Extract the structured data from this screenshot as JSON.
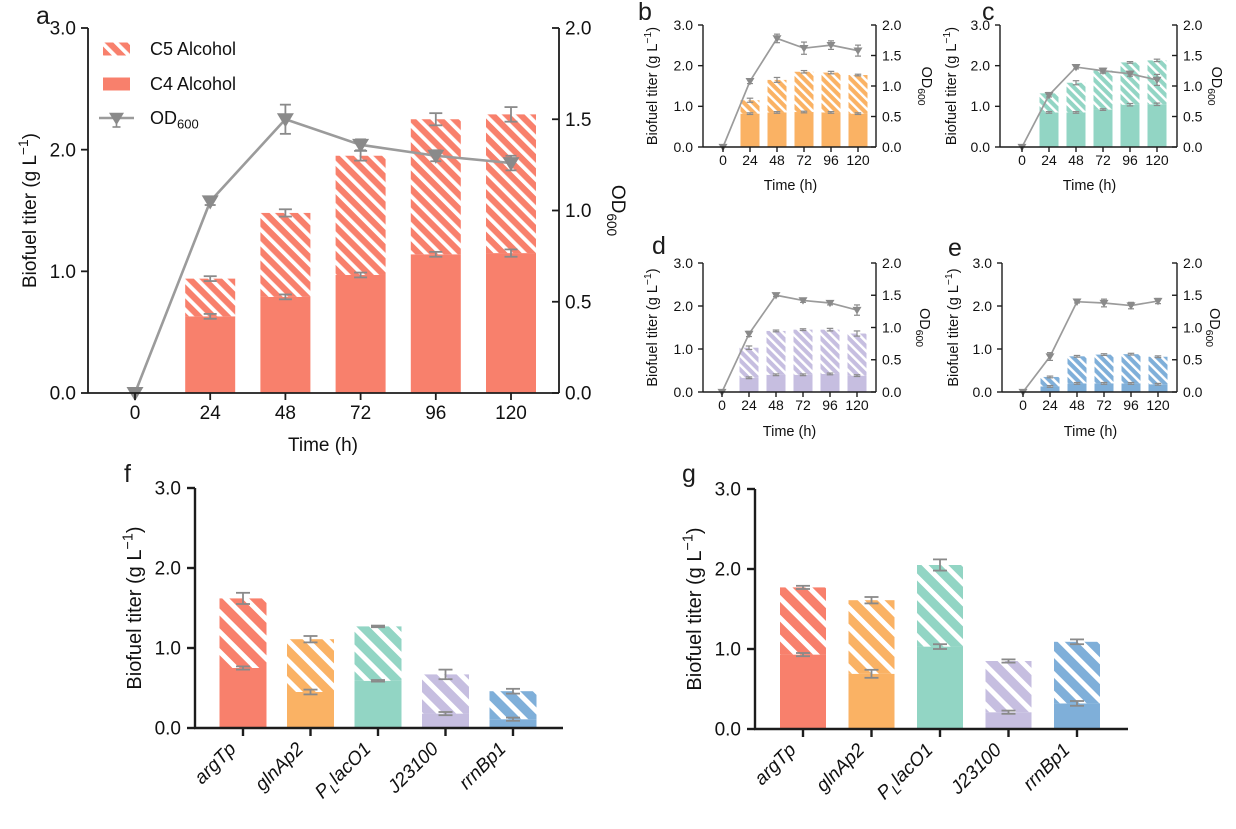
{
  "panel_letters": [
    "a",
    "b",
    "c",
    "d",
    "e",
    "f",
    "g"
  ],
  "colors": {
    "axis": "#1c1c1c",
    "text": "#111111",
    "od_line": "#9b9b9b",
    "od_marker": "#8a8a8a",
    "error_bar": "#8a8a8a",
    "bars": {
      "salmon": "#F8806C",
      "orange": "#FAB264",
      "teal": "#92D5C4",
      "purple": "#C6BEE0",
      "blue": "#7FAFD9"
    }
  },
  "labels": {
    "y_left": "Biofuel titer (g L^{−1})",
    "y_right": "OD_{600}",
    "x_time": "Time (h)"
  },
  "legend": [
    {
      "label": "C5 Alcohol",
      "swatch": "hatch"
    },
    {
      "label": "C4 Alcohol",
      "swatch": "solid"
    },
    {
      "label": "OD_{600}",
      "swatch": "line"
    }
  ],
  "chart_data": [
    {
      "panel": "a",
      "type": "stacked_bar_with_od_line",
      "color": "salmon",
      "has_legend": true,
      "x_ticks": [
        "0",
        "24",
        "48",
        "72",
        "96",
        "120"
      ],
      "y_left_ticks": [
        "0.0",
        "1.0",
        "2.0",
        "3.0"
      ],
      "ylim_left": [
        0,
        3
      ],
      "y_right_ticks": [
        "0.0",
        "0.5",
        "1.0",
        "1.5",
        "2.0"
      ],
      "ylim_right": [
        0,
        2
      ],
      "bar_times_h": [
        24,
        48,
        72,
        96,
        120
      ],
      "c4_alcohol": [
        0.63,
        0.79,
        0.97,
        1.14,
        1.15
      ],
      "total_titer": [
        0.94,
        1.48,
        1.95,
        2.25,
        2.29
      ],
      "c4_err": [
        0.02,
        0.02,
        0.02,
        0.02,
        0.03
      ],
      "total_err": [
        0.02,
        0.03,
        0.04,
        0.05,
        0.06
      ],
      "od600": [
        0,
        1.05,
        1.5,
        1.36,
        1.3,
        1.26
      ],
      "od600_err": [
        0,
        0.02,
        0.08,
        0.03,
        0.03,
        0.04
      ]
    },
    {
      "panel": "b",
      "type": "stacked_bar_with_od_line",
      "color": "orange",
      "has_legend": false,
      "x_ticks": [
        "0",
        "24",
        "48",
        "72",
        "96",
        "120"
      ],
      "y_left_ticks": [
        "0.0",
        "1.0",
        "2.0",
        "3.0"
      ],
      "ylim_left": [
        0,
        3
      ],
      "y_right_ticks": [
        "0.0",
        "0.5",
        "1.0",
        "1.5",
        "2.0"
      ],
      "ylim_right": [
        0,
        2
      ],
      "bar_times_h": [
        24,
        48,
        72,
        96,
        120
      ],
      "c4_alcohol": [
        0.82,
        0.85,
        0.86,
        0.85,
        0.82
      ],
      "total_titer": [
        1.15,
        1.65,
        1.85,
        1.83,
        1.77
      ],
      "c4_err": [
        0.02,
        0.02,
        0.02,
        0.02,
        0.02
      ],
      "total_err": [
        0.05,
        0.06,
        0.03,
        0.03,
        0.02
      ],
      "od600": [
        0,
        1.08,
        1.78,
        1.62,
        1.67,
        1.58
      ],
      "od600_err": [
        0,
        0.04,
        0.07,
        0.1,
        0.07,
        0.09
      ]
    },
    {
      "panel": "c",
      "type": "stacked_bar_with_od_line",
      "color": "teal",
      "has_legend": false,
      "x_ticks": [
        "0",
        "24",
        "48",
        "72",
        "96",
        "120"
      ],
      "y_left_ticks": [
        "0.0",
        "1.0",
        "2.0",
        "3.0"
      ],
      "ylim_left": [
        0,
        3
      ],
      "y_right_ticks": [
        "0.0",
        "0.5",
        "1.0",
        "1.5",
        "2.0"
      ],
      "ylim_right": [
        0,
        2
      ],
      "bar_times_h": [
        24,
        48,
        72,
        96,
        120
      ],
      "c4_alcohol": [
        0.85,
        0.85,
        0.92,
        1.04,
        1.05
      ],
      "total_titer": [
        1.32,
        1.58,
        1.88,
        2.08,
        2.13
      ],
      "c4_err": [
        0.02,
        0.02,
        0.02,
        0.03,
        0.03
      ],
      "total_err": [
        0.02,
        0.05,
        0.03,
        0.02,
        0.03
      ],
      "od600": [
        0,
        0.85,
        1.31,
        1.25,
        1.2,
        1.1
      ],
      "od600_err": [
        0,
        0.03,
        0.03,
        0.04,
        0.04,
        0.09
      ]
    },
    {
      "panel": "d",
      "type": "stacked_bar_with_od_line",
      "color": "purple",
      "has_legend": false,
      "x_ticks": [
        "0",
        "24",
        "48",
        "72",
        "96",
        "120"
      ],
      "y_left_ticks": [
        "0.0",
        "1.0",
        "2.0",
        "3.0"
      ],
      "ylim_left": [
        0,
        3
      ],
      "y_right_ticks": [
        "0.0",
        "0.5",
        "1.0",
        "1.5",
        "2.0"
      ],
      "ylim_right": [
        0,
        2
      ],
      "bar_times_h": [
        24,
        48,
        72,
        96,
        120
      ],
      "c4_alcohol": [
        0.33,
        0.4,
        0.4,
        0.42,
        0.38
      ],
      "total_titer": [
        1.03,
        1.42,
        1.45,
        1.45,
        1.36
      ],
      "c4_err": [
        0.02,
        0.02,
        0.02,
        0.02,
        0.02
      ],
      "total_err": [
        0.04,
        0.02,
        0.02,
        0.03,
        0.06
      ],
      "od600": [
        0,
        0.9,
        1.5,
        1.42,
        1.38,
        1.27
      ],
      "od600_err": [
        0,
        0.04,
        0.02,
        0.03,
        0.03,
        0.08
      ]
    },
    {
      "panel": "e",
      "type": "stacked_bar_with_od_line",
      "color": "blue",
      "has_legend": false,
      "x_ticks": [
        "0",
        "24",
        "48",
        "72",
        "96",
        "120"
      ],
      "y_left_ticks": [
        "0.0",
        "1.0",
        "2.0",
        "3.0"
      ],
      "ylim_left": [
        0,
        3
      ],
      "y_right_ticks": [
        "0.0",
        "0.5",
        "1.0",
        "1.5",
        "2.0"
      ],
      "ylim_right": [
        0,
        2
      ],
      "bar_times_h": [
        24,
        48,
        72,
        96,
        120
      ],
      "c4_alcohol": [
        0.13,
        0.2,
        0.2,
        0.2,
        0.18
      ],
      "total_titer": [
        0.35,
        0.83,
        0.87,
        0.88,
        0.82
      ],
      "c4_err": [
        0.02,
        0.02,
        0.02,
        0.02,
        0.02
      ],
      "total_err": [
        0.02,
        0.02,
        0.02,
        0.02,
        0.02
      ],
      "od600": [
        0,
        0.55,
        1.4,
        1.38,
        1.34,
        1.41
      ],
      "od600_err": [
        0,
        0.06,
        0.02,
        0.06,
        0.05,
        0.04
      ]
    },
    {
      "panel": "f",
      "type": "stacked_bar_promoters",
      "categories": [
        "argTp",
        "glnAp2",
        "P_{L}lacO1",
        "J23100",
        "rrnBp1"
      ],
      "bar_colors": [
        "salmon",
        "orange",
        "teal",
        "purple",
        "blue"
      ],
      "y_ticks": [
        "0.0",
        "1.0",
        "2.0",
        "3.0"
      ],
      "ylim": [
        0,
        3
      ],
      "c4_alcohol": [
        0.75,
        0.45,
        0.59,
        0.18,
        0.11
      ],
      "total_titer": [
        1.62,
        1.11,
        1.27,
        0.67,
        0.46
      ],
      "c4_err": [
        0.02,
        0.03,
        0.01,
        0.02,
        0.02
      ],
      "total_err": [
        0.07,
        0.04,
        0.01,
        0.06,
        0.03
      ]
    },
    {
      "panel": "g",
      "type": "stacked_bar_promoters",
      "categories": [
        "argTp",
        "glnAp2",
        "P_{L}lacO1",
        "J23100",
        "rrnBp1"
      ],
      "bar_colors": [
        "salmon",
        "orange",
        "teal",
        "purple",
        "blue"
      ],
      "y_ticks": [
        "0.0",
        "1.0",
        "2.0",
        "3.0"
      ],
      "ylim": [
        0,
        3
      ],
      "c4_alcohol": [
        0.93,
        0.69,
        1.03,
        0.21,
        0.32
      ],
      "total_titer": [
        1.77,
        1.61,
        2.05,
        0.85,
        1.09
      ],
      "c4_err": [
        0.02,
        0.05,
        0.03,
        0.02,
        0.03
      ],
      "total_err": [
        0.02,
        0.04,
        0.07,
        0.02,
        0.03
      ]
    }
  ]
}
